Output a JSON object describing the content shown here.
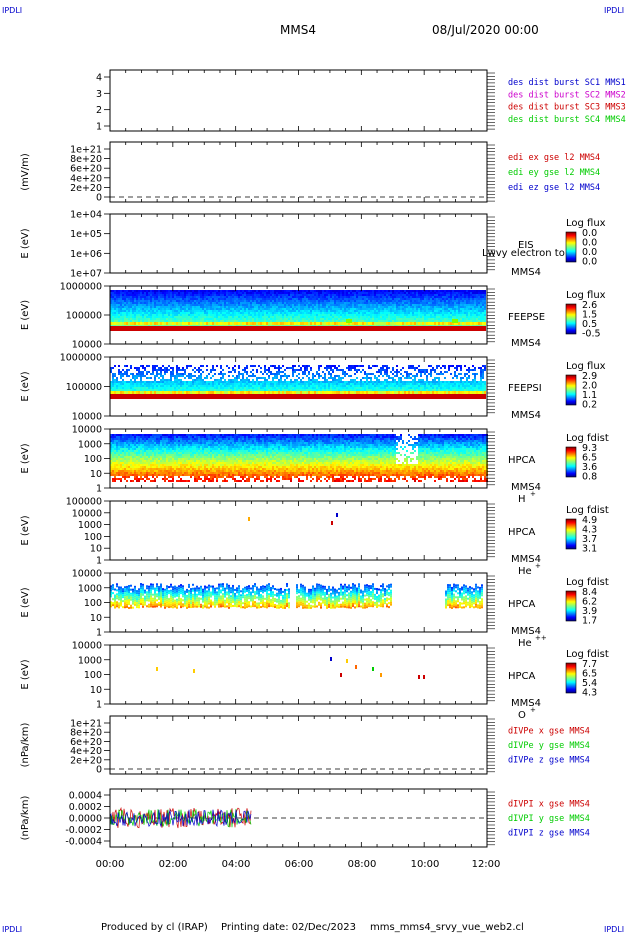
{
  "header": {
    "corner_label": "IPDLI",
    "spacecraft": "MMS4",
    "date_time": "08/Jul/2020 00:00"
  },
  "footer": {
    "produced_by": "Produced by cl (IRAP)",
    "printing_date": "Printing date: 02/Dec/2023",
    "script_name": "mms_mms4_srvy_vue_web2.cl"
  },
  "colors": {
    "black": "#000000",
    "blue": "#0000cc",
    "magenta": "#cc00cc",
    "red": "#cc0000",
    "green": "#00cc00"
  },
  "chart_data": [
    {
      "type": "line",
      "panel": "des-dist-burst",
      "ylim": [
        0.5,
        4.5
      ],
      "yticks": [
        "1",
        "2",
        "3",
        "4"
      ],
      "legend": [
        {
          "text": "des dist burst SC1 MMS1",
          "color": "#0000cc"
        },
        {
          "text": "des dist burst SC2 MMS2",
          "color": "#cc00cc"
        },
        {
          "text": "des dist burst SC3 MMS3",
          "color": "#cc0000"
        },
        {
          "text": "des dist burst SC4 MMS4",
          "color": "#00cc00"
        }
      ],
      "series": []
    },
    {
      "type": "line",
      "panel": "edi-e",
      "ylabel": "(mV/m)",
      "yticks": [
        "0",
        "2e+20",
        "4e+20",
        "6e+20",
        "8e+20",
        "1e+21"
      ],
      "ylim": [
        -2e+20,
        1.05e+21
      ],
      "zero_line": true,
      "legend": [
        {
          "text": "edi ex gse l2 MMS4",
          "color": "#cc0000"
        },
        {
          "text": "edi ey gse l2 MMS4",
          "color": "#00cc00"
        },
        {
          "text": "edi ez gse l2 MMS4",
          "color": "#0000cc"
        }
      ],
      "series": []
    },
    {
      "type": "heatmap",
      "panel": "eis",
      "ylabel": "E (eV)",
      "yticks": [
        "1e+04",
        "1e+05",
        "1e+06",
        "1e+07"
      ],
      "ylim": [
        10000,
        10000000
      ],
      "instrument": "EIS",
      "spacecraft": "MMS4",
      "overlay_text": "Lwvy electron to",
      "colorbar": {
        "title": "Log flux",
        "labels": [
          "0.0",
          "0.0",
          "0.0",
          "0.0"
        ]
      }
    },
    {
      "type": "heatmap",
      "panel": "feeps-e",
      "ylabel": "E (eV)",
      "yticks": [
        "1000000",
        "100000",
        "10000"
      ],
      "ylim": [
        10000,
        1000000
      ],
      "instrument": "FEEPSE",
      "spacecraft": "MMS4",
      "colorbar": {
        "title": "Log flux",
        "labels": [
          "2.6",
          "1.5",
          "0.5",
          "-0.5"
        ]
      },
      "data_end_hour": 11.95
    },
    {
      "type": "heatmap",
      "panel": "feeps-i",
      "ylabel": "E (eV)",
      "yticks": [
        "1000000",
        "100000",
        "10000"
      ],
      "ylim": [
        10000,
        1000000
      ],
      "instrument": "FEEPSI",
      "spacecraft": "MMS4",
      "colorbar": {
        "title": "Log flux",
        "labels": [
          "2.9",
          "2.0",
          "1.1",
          "0.2"
        ]
      },
      "data_end_hour": 11.95
    },
    {
      "type": "heatmap",
      "panel": "hpca-h",
      "ylabel": "E (eV)",
      "yticks": [
        "10000",
        "1000",
        "100",
        "10",
        "1"
      ],
      "ylim": [
        1,
        40000
      ],
      "instrument": "HPCA",
      "spacecraft": "MMS4",
      "species": "H",
      "species_charge": "+",
      "colorbar": {
        "title": "Log fdist",
        "labels": [
          "9.3",
          "6.5",
          "3.6",
          "0.8"
        ]
      }
    },
    {
      "type": "heatmap",
      "panel": "hpca-he",
      "ylabel": "E (eV)",
      "yticks": [
        "100000",
        "10000",
        "1000",
        "100",
        "10",
        "1"
      ],
      "ylim": [
        1,
        100000
      ],
      "instrument": "HPCA",
      "spacecraft": "MMS4",
      "species": "He",
      "species_charge": "+",
      "colorbar": {
        "title": "Log fdist",
        "labels": [
          "4.9",
          "4.3",
          "3.7",
          "3.1"
        ]
      }
    },
    {
      "type": "heatmap",
      "panel": "hpca-he2",
      "ylabel": "E (eV)",
      "yticks": [
        "10000",
        "1000",
        "100",
        "10",
        "1"
      ],
      "ylim": [
        1,
        10000
      ],
      "instrument": "HPCA",
      "spacecraft": "MMS4",
      "species": "He",
      "species_charge": "++",
      "colorbar": {
        "title": "Log fdist",
        "labels": [
          "8.4",
          "6.2",
          "3.9",
          "1.7"
        ]
      }
    },
    {
      "type": "heatmap",
      "panel": "hpca-o",
      "ylabel": "E (eV)",
      "yticks": [
        "10000",
        "1000",
        "100",
        "10",
        "1"
      ],
      "ylim": [
        1,
        10000
      ],
      "instrument": "HPCA",
      "spacecraft": "MMS4",
      "species": "O",
      "species_charge": "+",
      "colorbar": {
        "title": "Log fdist",
        "labels": [
          "7.7",
          "6.5",
          "5.4",
          "4.3"
        ]
      }
    },
    {
      "type": "line",
      "panel": "divpe",
      "ylabel": "(nPa/km)",
      "yticks": [
        "0",
        "2e+20",
        "4e+20",
        "6e+20",
        "8e+20",
        "1e+21"
      ],
      "ylim": [
        -5e+19,
        1.05e+21
      ],
      "zero_line": true,
      "legend": [
        {
          "text": "dIVPe x gse MMS4",
          "color": "#cc0000"
        },
        {
          "text": "dIVPe y gse MMS4",
          "color": "#00cc00"
        },
        {
          "text": "dIVPe z gse MMS4",
          "color": "#0000cc"
        }
      ],
      "series": []
    },
    {
      "type": "line",
      "panel": "divpi",
      "ylabel": "(nPa/km)",
      "yticks": [
        "-0.0004",
        "-0.0002",
        "0.0000",
        "0.0002",
        "0.0004"
      ],
      "ylim": [
        -0.0005,
        0.0005
      ],
      "zero_line": true,
      "x_range_hours": [
        0,
        4.5
      ],
      "series": [
        {
          "name": "dIVPI x gse MMS4",
          "color": "#cc0000",
          "amplitude": 0.00022
        },
        {
          "name": "dIVPI y gse MMS4",
          "color": "#00cc00",
          "amplitude": 0.0002
        },
        {
          "name": "dIVPI z gse MMS4",
          "color": "#0000cc",
          "amplitude": 0.00018
        }
      ],
      "legend": [
        {
          "text": "dIVPI x gse MMS4",
          "color": "#cc0000"
        },
        {
          "text": "dIVPI y gse MMS4",
          "color": "#00cc00"
        },
        {
          "text": "dIVPI z gse MMS4",
          "color": "#0000cc"
        }
      ]
    }
  ],
  "x_axis": {
    "range_hours": [
      0,
      12
    ],
    "tick_labels": [
      "00:00",
      "02:00",
      "04:00",
      "06:00",
      "08:00",
      "10:00",
      "12:00"
    ]
  }
}
